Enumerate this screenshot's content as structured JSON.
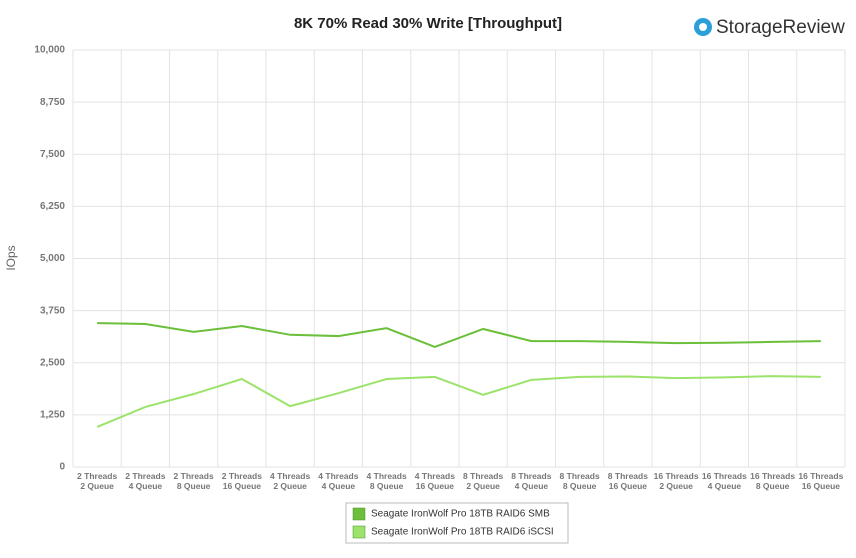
{
  "chart_data": {
    "type": "line",
    "title": "8K 70% Read 30% Write [Throughput]",
    "logo": "StorageReview",
    "y_label": "IOps",
    "categories": [
      "2 Threads\n2 Queue",
      "2 Threads\n4 Queue",
      "2 Threads\n8 Queue",
      "2 Threads\n16 Queue",
      "4 Threads\n2 Queue",
      "4 Threads\n4 Queue",
      "4 Threads\n8 Queue",
      "4 Threads\n16 Queue",
      "8 Threads\n2 Queue",
      "8 Threads\n4 Queue",
      "8 Threads\n8 Queue",
      "8 Threads\n16 Queue",
      "16 Threads\n2 Queue",
      "16 Threads\n4 Queue",
      "16 Threads\n8 Queue",
      "16 Threads\n16 Queue"
    ],
    "series": [
      {
        "name": "Seagate IronWolf Pro 18TB RAID6 SMB",
        "color": "#6cbf3a",
        "values": [
          3450,
          3430,
          3240,
          3380,
          3170,
          3140,
          3330,
          2880,
          3310,
          3020,
          3020,
          3000,
          2970,
          2980,
          3000,
          3020
        ]
      },
      {
        "name": "Seagate IronWolf Pro 18TB RAID6 iSCSI",
        "color": "#9be36b",
        "values": [
          960,
          1440,
          1750,
          2110,
          1460,
          1770,
          2110,
          2160,
          1730,
          2090,
          2160,
          2170,
          2130,
          2150,
          2180,
          2160
        ]
      }
    ],
    "ylim": [
      0,
      10000
    ],
    "yticks": [
      0,
      {
        "value": 1250,
        "label": "1,250"
      },
      {
        "value": 2500,
        "label": "2,500"
      },
      {
        "value": 3750,
        "label": "3,750"
      },
      {
        "value": 5000,
        "label": "5,000"
      },
      {
        "value": 6250,
        "label": "6,250"
      },
      {
        "value": 7500,
        "label": "7,500"
      },
      {
        "value": 8750,
        "label": "8,750"
      },
      {
        "value": 10000,
        "label": "10,000"
      }
    ],
    "grid": true
  }
}
